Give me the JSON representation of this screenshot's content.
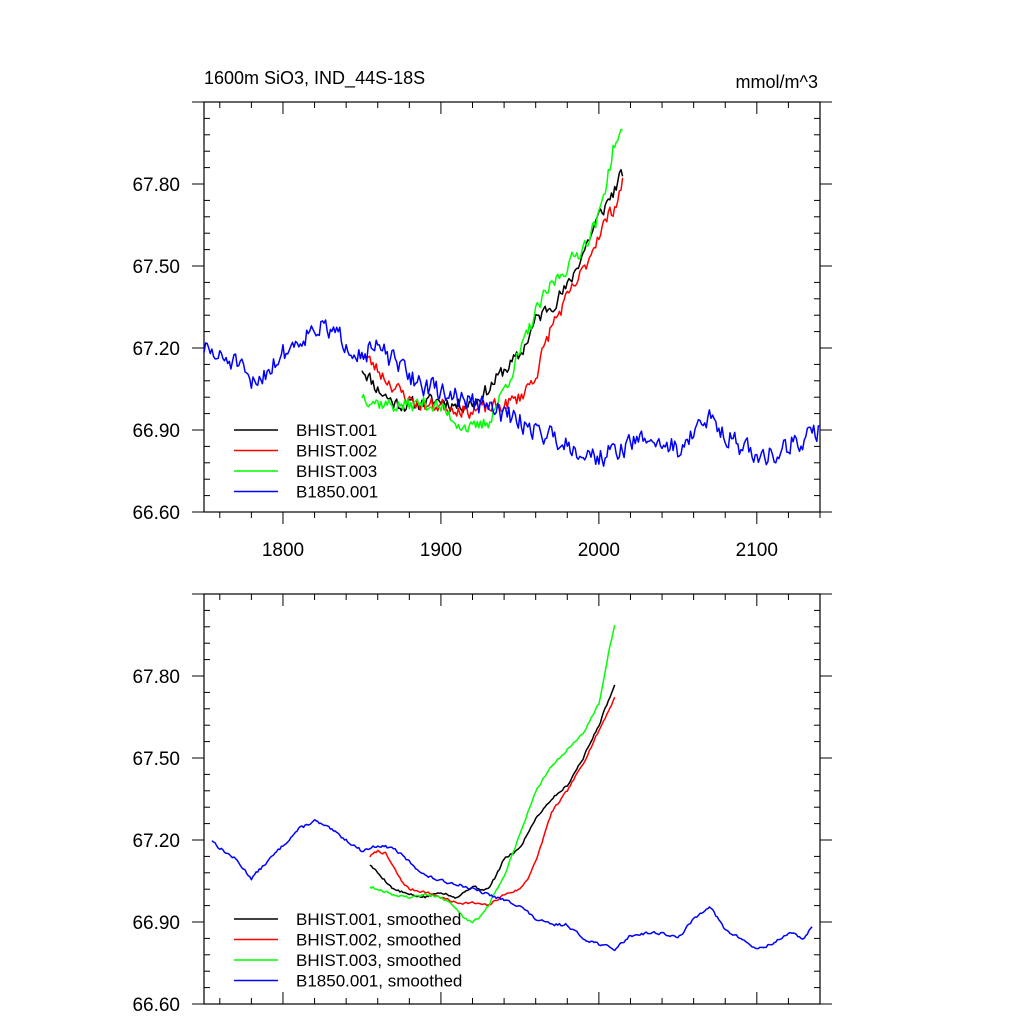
{
  "title_left": "1600m SiO3, IND_44S-18S",
  "title_right": "mmol/m^3",
  "chart_data": [
    {
      "type": "line",
      "panel": "top",
      "xlim": [
        1750,
        2140
      ],
      "ylim": [
        66.6,
        68.1
      ],
      "x_ticks": [
        1800,
        1900,
        2000,
        2100
      ],
      "x_tick_labels": [
        "1800",
        "1900",
        "2000",
        "2100"
      ],
      "y_ticks": [
        66.6,
        66.9,
        67.2,
        67.5,
        67.8
      ],
      "y_tick_labels": [
        "66.60",
        "66.90",
        "67.20",
        "67.50",
        "67.80"
      ],
      "legend_position": "lower-left",
      "series": [
        {
          "name": "BHIST.001",
          "color": "#000000",
          "noise": 0.025,
          "seed": 11,
          "points": [
            [
              1850,
              67.13
            ],
            [
              1860,
              67.05
            ],
            [
              1870,
              67.0
            ],
            [
              1880,
              66.99
            ],
            [
              1890,
              67.0
            ],
            [
              1900,
              67.01
            ],
            [
              1910,
              66.99
            ],
            [
              1920,
              67.0
            ],
            [
              1925,
              67.02
            ],
            [
              1930,
              67.05
            ],
            [
              1940,
              67.12
            ],
            [
              1950,
              67.17
            ],
            [
              1960,
              67.3
            ],
            [
              1970,
              67.36
            ],
            [
              1980,
              67.42
            ],
            [
              1990,
              67.55
            ],
            [
              2000,
              67.68
            ],
            [
              2010,
              67.78
            ],
            [
              2015,
              67.84
            ]
          ]
        },
        {
          "name": "BHIST.002",
          "color": "#ff0000",
          "noise": 0.025,
          "seed": 23,
          "points": [
            [
              1850,
              67.18
            ],
            [
              1860,
              67.12
            ],
            [
              1870,
              67.06
            ],
            [
              1880,
              67.01
            ],
            [
              1890,
              66.99
            ],
            [
              1900,
              66.99
            ],
            [
              1910,
              66.98
            ],
            [
              1920,
              66.97
            ],
            [
              1930,
              66.98
            ],
            [
              1940,
              66.99
            ],
            [
              1950,
              67.02
            ],
            [
              1960,
              67.1
            ],
            [
              1970,
              67.28
            ],
            [
              1980,
              67.38
            ],
            [
              1990,
              67.48
            ],
            [
              2000,
              67.62
            ],
            [
              2010,
              67.72
            ],
            [
              2015,
              67.8
            ]
          ]
        },
        {
          "name": "BHIST.003",
          "color": "#00ff00",
          "noise": 0.025,
          "seed": 37,
          "points": [
            [
              1850,
              67.03
            ],
            [
              1860,
              67.0
            ],
            [
              1870,
              66.99
            ],
            [
              1880,
              66.99
            ],
            [
              1890,
              67.0
            ],
            [
              1900,
              66.98
            ],
            [
              1910,
              66.93
            ],
            [
              1920,
              66.9
            ],
            [
              1930,
              66.93
            ],
            [
              1940,
              67.05
            ],
            [
              1950,
              67.18
            ],
            [
              1960,
              67.33
            ],
            [
              1970,
              67.43
            ],
            [
              1980,
              67.5
            ],
            [
              1990,
              67.57
            ],
            [
              2000,
              67.68
            ],
            [
              2010,
              67.95
            ],
            [
              2015,
              67.98
            ]
          ]
        },
        {
          "name": "B1850.001",
          "color": "#0000ff",
          "noise": 0.035,
          "seed": 51,
          "points": [
            [
              1750,
              67.2
            ],
            [
              1760,
              67.16
            ],
            [
              1770,
              67.15
            ],
            [
              1780,
              67.06
            ],
            [
              1790,
              67.12
            ],
            [
              1800,
              67.18
            ],
            [
              1810,
              67.23
            ],
            [
              1820,
              67.28
            ],
            [
              1830,
              67.26
            ],
            [
              1840,
              67.22
            ],
            [
              1850,
              67.18
            ],
            [
              1860,
              67.2
            ],
            [
              1870,
              67.15
            ],
            [
              1880,
              67.1
            ],
            [
              1890,
              67.06
            ],
            [
              1900,
              67.04
            ],
            [
              1910,
              67.02
            ],
            [
              1920,
              67.0
            ],
            [
              1930,
              66.98
            ],
            [
              1940,
              66.96
            ],
            [
              1950,
              66.93
            ],
            [
              1960,
              66.9
            ],
            [
              1970,
              66.88
            ],
            [
              1980,
              66.85
            ],
            [
              1990,
              66.82
            ],
            [
              2000,
              66.8
            ],
            [
              2010,
              66.82
            ],
            [
              2020,
              66.85
            ],
            [
              2030,
              66.87
            ],
            [
              2040,
              66.85
            ],
            [
              2050,
              66.83
            ],
            [
              2060,
              66.89
            ],
            [
              2070,
              66.94
            ],
            [
              2080,
              66.89
            ],
            [
              2090,
              66.84
            ],
            [
              2100,
              66.8
            ],
            [
              2110,
              66.81
            ],
            [
              2120,
              66.85
            ],
            [
              2130,
              66.86
            ],
            [
              2140,
              66.9
            ]
          ]
        }
      ]
    },
    {
      "type": "line",
      "panel": "bottom",
      "xlim": [
        1750,
        2140
      ],
      "ylim": [
        66.6,
        68.1
      ],
      "x_ticks": [
        1800,
        1900,
        2000,
        2100
      ],
      "y_ticks": [
        66.6,
        66.9,
        67.2,
        67.5,
        67.8
      ],
      "y_tick_labels": [
        "66.60",
        "66.90",
        "67.20",
        "67.50",
        "67.80"
      ],
      "legend_position": "lower-left",
      "series": [
        {
          "name": "BHIST.001, smoothed",
          "color": "#000000",
          "noise": 0.004,
          "seed": 5,
          "points": [
            [
              1855,
              67.11
            ],
            [
              1860,
              67.08
            ],
            [
              1865,
              67.05
            ],
            [
              1870,
              67.02
            ],
            [
              1880,
              67.0
            ],
            [
              1890,
              66.99
            ],
            [
              1900,
              67.01
            ],
            [
              1910,
              66.99
            ],
            [
              1920,
              67.03
            ],
            [
              1925,
              67.02
            ],
            [
              1930,
              67.02
            ],
            [
              1935,
              67.07
            ],
            [
              1940,
              67.13
            ],
            [
              1950,
              67.17
            ],
            [
              1960,
              67.28
            ],
            [
              1970,
              67.35
            ],
            [
              1980,
              67.4
            ],
            [
              1990,
              67.5
            ],
            [
              2000,
              67.62
            ],
            [
              2010,
              67.77
            ]
          ]
        },
        {
          "name": "BHIST.002, smoothed",
          "color": "#ff0000",
          "noise": 0.004,
          "seed": 7,
          "points": [
            [
              1855,
              67.14
            ],
            [
              1860,
              67.16
            ],
            [
              1865,
              67.15
            ],
            [
              1870,
              67.1
            ],
            [
              1875,
              67.05
            ],
            [
              1880,
              67.02
            ],
            [
              1890,
              67.01
            ],
            [
              1900,
              66.99
            ],
            [
              1910,
              66.97
            ],
            [
              1920,
              66.97
            ],
            [
              1930,
              66.96
            ],
            [
              1935,
              66.98
            ],
            [
              1940,
              67.0
            ],
            [
              1950,
              67.02
            ],
            [
              1955,
              67.06
            ],
            [
              1960,
              67.12
            ],
            [
              1970,
              67.3
            ],
            [
              1980,
              67.38
            ],
            [
              1990,
              67.48
            ],
            [
              2000,
              67.6
            ],
            [
              2010,
              67.72
            ]
          ]
        },
        {
          "name": "BHIST.003, smoothed",
          "color": "#00ff00",
          "noise": 0.004,
          "seed": 9,
          "points": [
            [
              1855,
              67.03
            ],
            [
              1860,
              67.02
            ],
            [
              1870,
              67.0
            ],
            [
              1880,
              66.99
            ],
            [
              1890,
              67.0
            ],
            [
              1900,
              66.99
            ],
            [
              1910,
              66.95
            ],
            [
              1915,
              66.91
            ],
            [
              1920,
              66.9
            ],
            [
              1925,
              66.92
            ],
            [
              1930,
              66.96
            ],
            [
              1940,
              67.07
            ],
            [
              1950,
              67.22
            ],
            [
              1960,
              67.38
            ],
            [
              1970,
              67.47
            ],
            [
              1980,
              67.53
            ],
            [
              1990,
              67.59
            ],
            [
              2000,
              67.7
            ],
            [
              2005,
              67.85
            ],
            [
              2010,
              67.99
            ]
          ]
        },
        {
          "name": "B1850.001, smoothed",
          "color": "#0000ff",
          "noise": 0.005,
          "seed": 13,
          "points": [
            [
              1755,
              67.2
            ],
            [
              1760,
              67.17
            ],
            [
              1770,
              67.13
            ],
            [
              1780,
              67.06
            ],
            [
              1790,
              67.12
            ],
            [
              1800,
              67.18
            ],
            [
              1810,
              67.24
            ],
            [
              1820,
              67.27
            ],
            [
              1830,
              67.24
            ],
            [
              1840,
              67.2
            ],
            [
              1850,
              67.16
            ],
            [
              1860,
              67.18
            ],
            [
              1870,
              67.17
            ],
            [
              1880,
              67.12
            ],
            [
              1890,
              67.07
            ],
            [
              1900,
              67.05
            ],
            [
              1910,
              67.04
            ],
            [
              1920,
              67.02
            ],
            [
              1930,
              67.0
            ],
            [
              1940,
              66.98
            ],
            [
              1950,
              66.96
            ],
            [
              1960,
              66.91
            ],
            [
              1970,
              66.89
            ],
            [
              1980,
              66.89
            ],
            [
              1990,
              66.84
            ],
            [
              2000,
              66.82
            ],
            [
              2010,
              66.8
            ],
            [
              2020,
              66.85
            ],
            [
              2030,
              66.86
            ],
            [
              2040,
              66.86
            ],
            [
              2050,
              66.84
            ],
            [
              2060,
              66.91
            ],
            [
              2070,
              66.96
            ],
            [
              2080,
              66.87
            ],
            [
              2090,
              66.84
            ],
            [
              2100,
              66.8
            ],
            [
              2110,
              66.82
            ],
            [
              2120,
              66.86
            ],
            [
              2130,
              66.84
            ],
            [
              2135,
              66.88
            ]
          ]
        }
      ]
    }
  ]
}
